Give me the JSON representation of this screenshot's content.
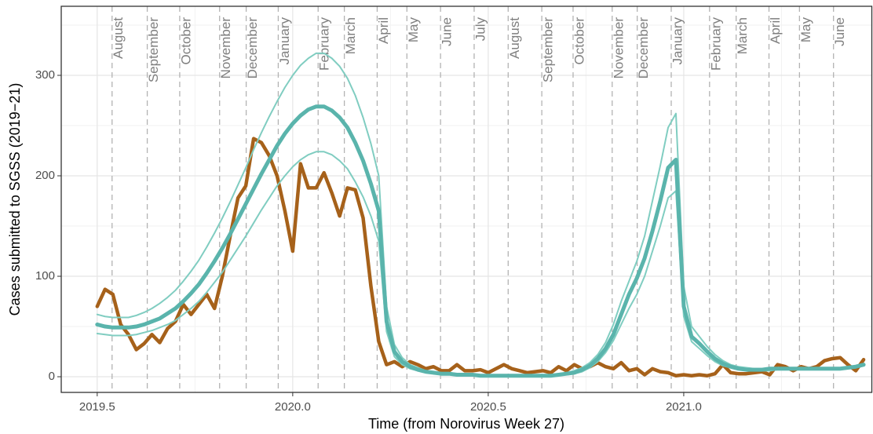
{
  "chart_data": {
    "type": "line",
    "xlabel": "Time (from Norovirus Week 27)",
    "ylabel": "Cases submitted to SGSS (2019−21)",
    "xlim": [
      2019.408,
      2021.481
    ],
    "ylim": [
      -15.6,
      368.75
    ],
    "xticks": [
      2019.5,
      {
        "value": 2020,
        "label": "2020.0"
      },
      2020.5,
      {
        "value": 2021,
        "label": "2021.0"
      }
    ],
    "yticks": [
      0,
      100,
      200,
      300
    ],
    "x_minor_grid": [
      2019.75,
      2020.25,
      2020.75,
      2021.25
    ],
    "y_minor_grid": [
      50,
      150,
      250,
      350
    ],
    "grid": true,
    "month_lines": [
      {
        "label": "August",
        "x": 2019.538
      },
      {
        "label": "September",
        "x": 2019.628
      },
      {
        "label": "October",
        "x": 2019.711
      },
      {
        "label": "November",
        "x": 2019.813
      },
      {
        "label": "December",
        "x": 2019.881
      },
      {
        "label": "January",
        "x": 2019.963
      },
      {
        "label": "February",
        "x": 2020.065
      },
      {
        "label": "March",
        "x": 2020.132
      },
      {
        "label": "April",
        "x": 2020.216
      },
      {
        "label": "May",
        "x": 2020.292
      },
      {
        "label": "June",
        "x": 2020.378
      },
      {
        "label": "July",
        "x": 2020.464
      },
      {
        "label": "August",
        "x": 2020.551
      },
      {
        "label": "September",
        "x": 2020.637
      },
      {
        "label": "October",
        "x": 2020.717
      },
      {
        "label": "November",
        "x": 2020.817
      },
      {
        "label": "December",
        "x": 2020.881
      },
      {
        "label": "January",
        "x": 2020.968
      },
      {
        "label": "February",
        "x": 2021.066
      },
      {
        "label": "March",
        "x": 2021.134
      },
      {
        "label": "April",
        "x": 2021.218
      },
      {
        "label": "May",
        "x": 2021.296
      },
      {
        "label": "June",
        "x": 2021.383
      }
    ],
    "x": [
      2019.5,
      2019.52,
      2019.54,
      2019.56,
      2019.58,
      2019.6,
      2019.62,
      2019.64,
      2019.66,
      2019.68,
      2019.7,
      2019.72,
      2019.74,
      2019.76,
      2019.78,
      2019.8,
      2019.82,
      2019.84,
      2019.86,
      2019.88,
      2019.9,
      2019.92,
      2019.94,
      2019.96,
      2019.98,
      2020.0,
      2020.02,
      2020.04,
      2020.06,
      2020.08,
      2020.1,
      2020.12,
      2020.14,
      2020.16,
      2020.18,
      2020.2,
      2020.22,
      2020.24,
      2020.26,
      2020.28,
      2020.3,
      2020.32,
      2020.34,
      2020.36,
      2020.38,
      2020.4,
      2020.42,
      2020.44,
      2020.46,
      2020.48,
      2020.5,
      2020.52,
      2020.54,
      2020.56,
      2020.58,
      2020.6,
      2020.62,
      2020.64,
      2020.66,
      2020.68,
      2020.7,
      2020.72,
      2020.74,
      2020.76,
      2020.78,
      2020.8,
      2020.82,
      2020.84,
      2020.86,
      2020.88,
      2020.9,
      2020.92,
      2020.94,
      2020.96,
      2020.98,
      2021.0,
      2021.02,
      2021.04,
      2021.06,
      2021.08,
      2021.1,
      2021.12,
      2021.14,
      2021.16,
      2021.18,
      2021.2,
      2021.22,
      2021.24,
      2021.26,
      2021.28,
      2021.3,
      2021.32,
      2021.34,
      2021.36,
      2021.38,
      2021.4,
      2021.42,
      2021.44,
      2021.46
    ],
    "series": [
      {
        "color": "#a6611a",
        "width": 4.5,
        "values": [
          70,
          87,
          82,
          52,
          42,
          27,
          33,
          42,
          34,
          48,
          55,
          72,
          62,
          72,
          82,
          68,
          100,
          140,
          178,
          190,
          237,
          233,
          220,
          200,
          165,
          125,
          212,
          188,
          188,
          203,
          183,
          160,
          188,
          186,
          158,
          90,
          35,
          12,
          15,
          10,
          15,
          12,
          8,
          10,
          6,
          6,
          12,
          6,
          6,
          7,
          4,
          8,
          12,
          8,
          6,
          4,
          5,
          6,
          4,
          10,
          6,
          12,
          8,
          10,
          14,
          10,
          8,
          14,
          6,
          8,
          2,
          8,
          5,
          4,
          1,
          2,
          1,
          2,
          1,
          3,
          12,
          4,
          3,
          3,
          4,
          5,
          2,
          12,
          10,
          6,
          10,
          8,
          10,
          16,
          18,
          19,
          12,
          6,
          17
        ]
      },
      {
        "color": "#80cdc1",
        "width": 2,
        "values": [
          62,
          60,
          59,
          59,
          59,
          61,
          64,
          68,
          73,
          79,
          86,
          95,
          105,
          116,
          129,
          143,
          158,
          174,
          191,
          208,
          226,
          243,
          259,
          274,
          288,
          300,
          310,
          317,
          322,
          322,
          317,
          309,
          297,
          280,
          258,
          232,
          200,
          70,
          32,
          19,
          12,
          9,
          6,
          5,
          4,
          4,
          3,
          3,
          2,
          2,
          2,
          2,
          2,
          2,
          2,
          2,
          2,
          2,
          2,
          3,
          4,
          6,
          9,
          14,
          22,
          34,
          52,
          75,
          95,
          115,
          140,
          175,
          210,
          248,
          262,
          90,
          50,
          40,
          30,
          22,
          16,
          12,
          10,
          9,
          8,
          8,
          8,
          9,
          9,
          9,
          9,
          9,
          9,
          9,
          9,
          9,
          10,
          11,
          13
        ]
      },
      {
        "color": "#80cdc1",
        "width": 2,
        "values": [
          43,
          42,
          41,
          41,
          41,
          42,
          44,
          46,
          49,
          52,
          56,
          62,
          68,
          75,
          84,
          94,
          104,
          116,
          128,
          140,
          153,
          166,
          178,
          190,
          200,
          209,
          216,
          221,
          224,
          224,
          221,
          215,
          207,
          194,
          179,
          160,
          135,
          45,
          20,
          12,
          8,
          6,
          4,
          3,
          3,
          2,
          2,
          1,
          1,
          1,
          1,
          1,
          1,
          1,
          1,
          1,
          1,
          1,
          1,
          2,
          2,
          3,
          5,
          9,
          15,
          24,
          36,
          52,
          68,
          82,
          100,
          125,
          150,
          178,
          185,
          60,
          35,
          28,
          21,
          15,
          11,
          9,
          7,
          6,
          6,
          6,
          6,
          7,
          7,
          7,
          7,
          7,
          7,
          7,
          7,
          7,
          8,
          9,
          11
        ]
      },
      {
        "color": "#5ab4ac",
        "width": 5,
        "values": [
          52,
          50,
          49,
          49,
          49,
          50,
          52,
          55,
          58,
          63,
          68,
          75,
          83,
          92,
          103,
          115,
          128,
          142,
          157,
          172,
          187,
          202,
          216,
          230,
          242,
          252,
          260,
          266,
          269,
          269,
          265,
          258,
          248,
          233,
          215,
          192,
          165,
          55,
          25,
          15,
          10,
          7,
          5,
          4,
          3,
          3,
          2,
          2,
          2,
          1,
          1,
          1,
          1,
          1,
          1,
          1,
          1,
          1,
          1,
          2,
          3,
          4,
          7,
          11,
          18,
          28,
          42,
          62,
          82,
          98,
          118,
          145,
          175,
          208,
          216,
          70,
          40,
          33,
          25,
          18,
          13,
          10,
          8,
          7,
          7,
          7,
          8,
          8,
          8,
          8,
          8,
          8,
          8,
          8,
          8,
          8,
          9,
          10,
          12
        ]
      }
    ]
  }
}
